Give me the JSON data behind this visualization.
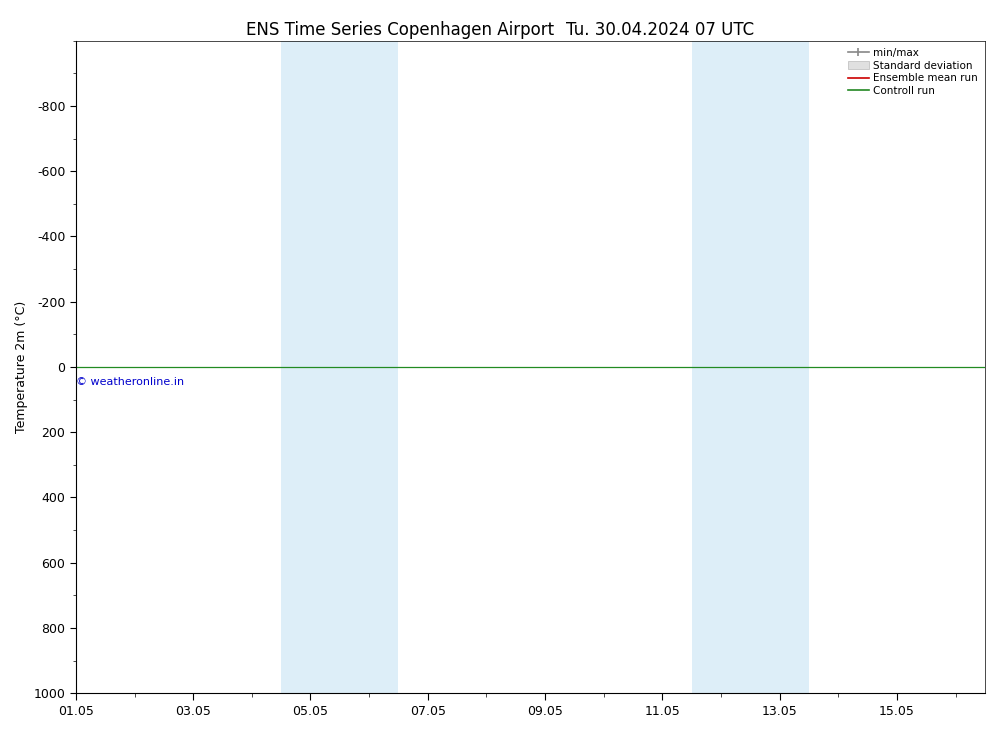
{
  "title_left": "ENS Time Series Copenhagen Airport",
  "title_right": "Tu. 30.04.2024 07 UTC",
  "ylabel": "Temperature 2m (°C)",
  "ylim": [
    -1000,
    1000
  ],
  "yticks": [
    -800,
    -600,
    -400,
    -200,
    0,
    200,
    400,
    600,
    800,
    1000
  ],
  "xtick_labels": [
    "01.05",
    "03.05",
    "05.05",
    "07.05",
    "09.05",
    "11.05",
    "13.05",
    "15.05"
  ],
  "xtick_positions": [
    0,
    2,
    4,
    6,
    8,
    10,
    12,
    14
  ],
  "xlim": [
    0,
    15.5
  ],
  "shaded_bands": [
    {
      "x_start": 3.5,
      "x_end": 4.5
    },
    {
      "x_start": 4.5,
      "x_end": 5.5
    },
    {
      "x_start": 10.5,
      "x_end": 11.5
    },
    {
      "x_start": 11.5,
      "x_end": 12.5
    }
  ],
  "band_color": "#ddeef8",
  "hline_y": 0,
  "hline_color": "#228B22",
  "copyright_text": "© weatheronline.in",
  "copyright_color": "#0000cc",
  "legend_labels": [
    "min/max",
    "Standard deviation",
    "Ensemble mean run",
    "Controll run"
  ],
  "legend_minmax_color": "#888888",
  "legend_std_color": "#cccccc",
  "legend_ens_color": "#cc0000",
  "legend_ctrl_color": "#228822",
  "background_color": "#ffffff",
  "title_fontsize": 12,
  "axis_label_fontsize": 9,
  "tick_fontsize": 9,
  "legend_fontsize": 7.5
}
